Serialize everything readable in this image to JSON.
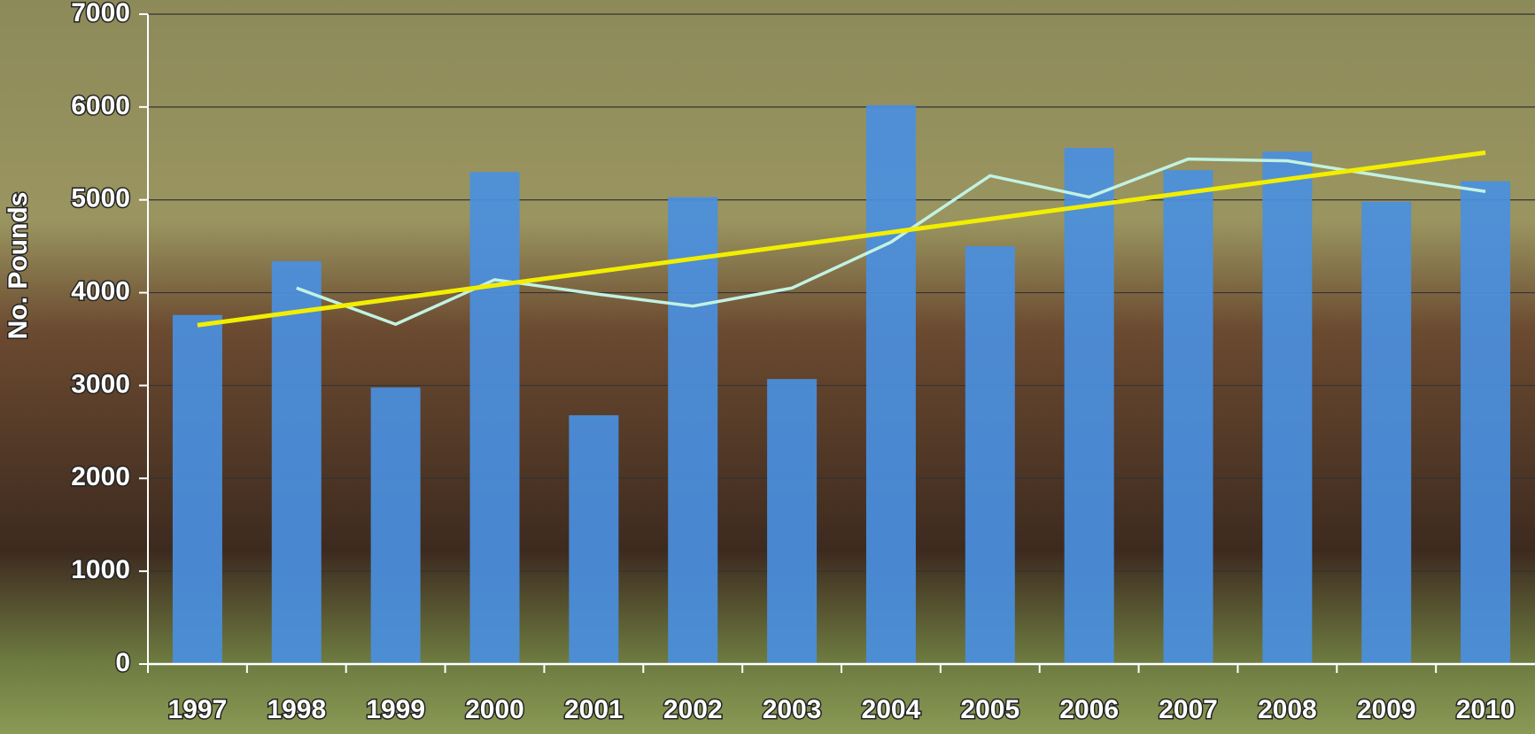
{
  "chart_data": {
    "type": "bar",
    "y_label": "No. Pounds",
    "categories": [
      "1997",
      "1998",
      "1999",
      "2000",
      "2001",
      "2002",
      "2003",
      "2004",
      "2005",
      "2006",
      "2007",
      "2008",
      "2009",
      "2010"
    ],
    "series": [
      {
        "type": "bar",
        "color": "#4a8fe0",
        "values": [
          3760,
          4340,
          2980,
          5300,
          2680,
          5030,
          3070,
          6020,
          4500,
          5560,
          5320,
          5520,
          4980,
          5200
        ]
      },
      {
        "type": "line",
        "color": "#c2f2e2",
        "values": [
          null,
          4050,
          3660,
          4140,
          3990,
          3855,
          4050,
          4545,
          5260,
          5030,
          5440,
          5420,
          5250,
          5090
        ]
      },
      {
        "type": "line",
        "color": "#f2ee00",
        "values": [
          3650,
          3793,
          3936,
          4079,
          4222,
          4365,
          4508,
          4651,
          4794,
          4937,
          5080,
          5223,
          5366,
          5509
        ]
      }
    ],
    "ylim": [
      0,
      7000
    ],
    "yticks": [
      0,
      1000,
      2000,
      3000,
      4000,
      5000,
      6000,
      7000
    ],
    "grid": true
  }
}
